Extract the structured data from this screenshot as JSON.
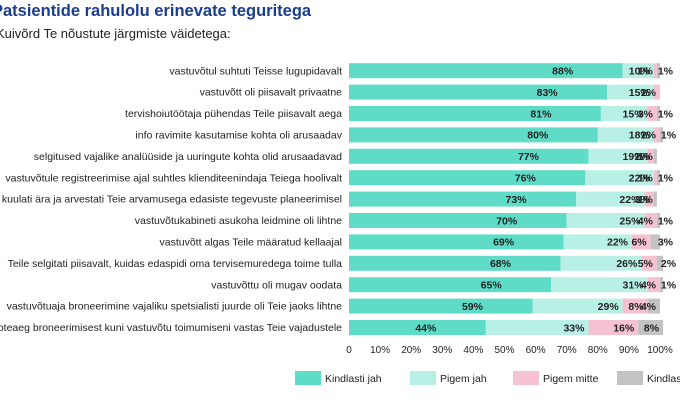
{
  "title": "Patsientide rahulolu erinevate teguritega",
  "subtitle": "Kuivõrd Te nõustute järgmiste väidetega:",
  "chart_data": {
    "type": "bar",
    "orientation": "horizontal",
    "stacked": true,
    "categories": [
      "vastuvõtul suhtuti Teisse lugupidavalt",
      "vastuvõtt oli piisavalt privaatne",
      "tervishoiutöötaja pühendas Teile piisavalt aega",
      "info ravimite kasutamise kohta oli arusaadav",
      "selgitused vajalike analüüside ja uuringute kohta olid arusaadavad",
      "vastuvõtule registreerimise ajal suhtles klienditeenindaja Teiega hoolivalt",
      "Teid kuulati ära ja arvestati Teie arvamusega edasiste tegevuste planeerimisel",
      "vastuvõtukabineti asukoha leidmine oli lihtne",
      "vastuvõtt algas Teile määratud kellaajal",
      "Teile selgitati piisavalt, kuidas edaspidi oma tervisemuredega toime tulla",
      "vastuvõttu oli mugav oodata",
      "vastuvõtuaja broneerimine vajaliku spetsialisti juurde oli Teie jaoks lihtne",
      "ooteaeg broneerimisest kuni vastuvõtu toimumiseni vastas Teie vajadustele"
    ],
    "series": [
      {
        "name": "Kindlasti jah",
        "color": "#5fdcc8",
        "values": [
          88,
          83,
          81,
          80,
          77,
          76,
          73,
          70,
          69,
          68,
          65,
          59,
          44
        ]
      },
      {
        "name": "Pigem jah",
        "color": "#b9f0e6",
        "values": [
          10,
          15,
          15,
          18,
          19,
          22,
          22,
          25,
          22,
          26,
          31,
          29,
          33
        ]
      },
      {
        "name": "Pigem mitte",
        "color": "#f6c1d0",
        "values": [
          1,
          2,
          3,
          2,
          2,
          1,
          3,
          4,
          6,
          5,
          4,
          8,
          16
        ]
      },
      {
        "name": "Kindlasti mitte",
        "color": "#c3c3c3",
        "values": [
          1,
          0,
          1,
          1,
          1,
          1,
          1,
          1,
          3,
          2,
          1,
          4,
          8
        ]
      }
    ],
    "xlim": [
      0,
      100
    ],
    "xticks": [
      "0",
      "10%",
      "20%",
      "30%",
      "40%",
      "50%",
      "60%",
      "70%",
      "80%",
      "90%",
      "100%"
    ],
    "grid": false,
    "legend_position": "bottom"
  }
}
